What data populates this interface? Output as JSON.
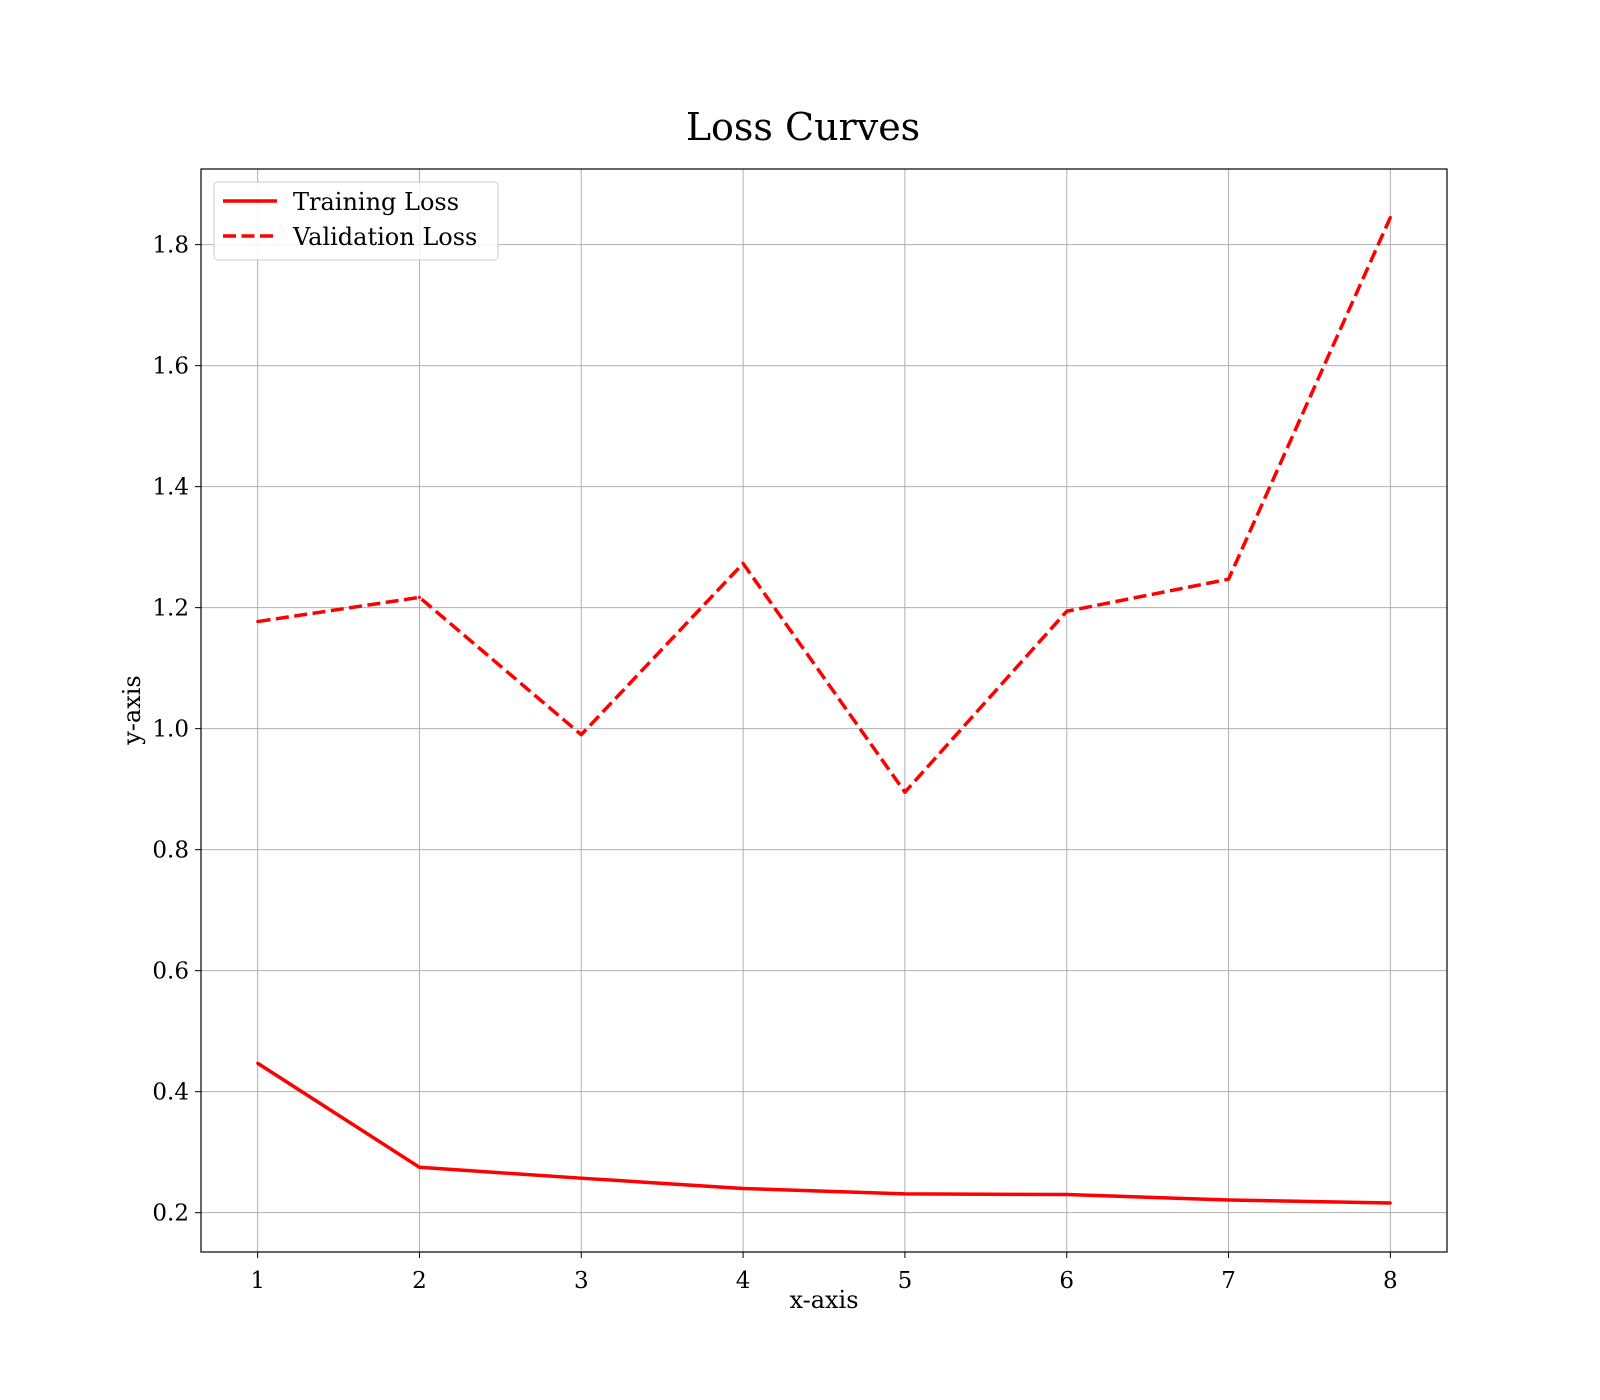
{
  "chart_data": {
    "type": "line",
    "title": "Loss Curves",
    "xlabel": "x-axis",
    "ylabel": "y-axis",
    "x": [
      1,
      2,
      3,
      4,
      5,
      6,
      7,
      8
    ],
    "xlim": [
      0.65,
      8.35
    ],
    "ylim": [
      0.135,
      1.925
    ],
    "xticks": [
      1,
      2,
      3,
      4,
      5,
      6,
      7,
      8
    ],
    "yticks": [
      0.2,
      0.4,
      0.6,
      0.8,
      1.0,
      1.2,
      1.4,
      1.6,
      1.8
    ],
    "grid": true,
    "legend_position": "top-left",
    "series": [
      {
        "name": "Training Loss",
        "style": "solid",
        "color": "#ff0000",
        "values": [
          0.447,
          0.275,
          0.257,
          0.24,
          0.231,
          0.23,
          0.221,
          0.216
        ]
      },
      {
        "name": "Validation Loss",
        "style": "dashed",
        "color": "#ff0000",
        "values": [
          1.177,
          1.217,
          0.99,
          1.273,
          0.895,
          1.194,
          1.247,
          1.845
        ]
      }
    ]
  }
}
